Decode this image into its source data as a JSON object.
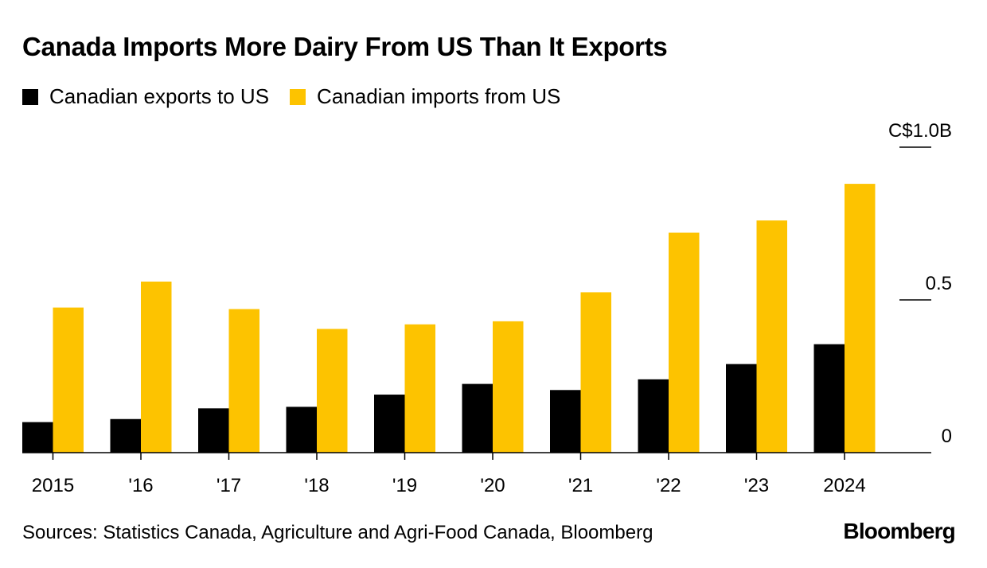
{
  "chart_data": {
    "type": "bar",
    "title": "Canada Imports More Dairy From US Than It Exports",
    "categories": [
      "2015",
      "'16",
      "'17",
      "'18",
      "'19",
      "'20",
      "'21",
      "'22",
      "'23",
      "2024"
    ],
    "series": [
      {
        "name": "Canadian exports to US",
        "color": "#000000",
        "values": [
          0.1,
          0.11,
          0.145,
          0.15,
          0.19,
          0.225,
          0.205,
          0.24,
          0.29,
          0.355
        ]
      },
      {
        "name": "Canadian imports from US",
        "color": "#FDC300",
        "values": [
          0.475,
          0.56,
          0.47,
          0.405,
          0.42,
          0.43,
          0.525,
          0.72,
          0.76,
          0.88
        ]
      }
    ],
    "ylim": [
      0,
      1.0
    ],
    "yticks": [
      {
        "value": 0,
        "label": "0"
      },
      {
        "value": 0.5,
        "label": "0.5"
      },
      {
        "value": 1.0,
        "label": "C$1.0B"
      }
    ],
    "xlabel": "",
    "ylabel": "",
    "legend_position": "top-left",
    "source": "Sources: Statistics Canada, Agriculture and Agri-Food Canada, Bloomberg",
    "brand": "Bloomberg"
  }
}
